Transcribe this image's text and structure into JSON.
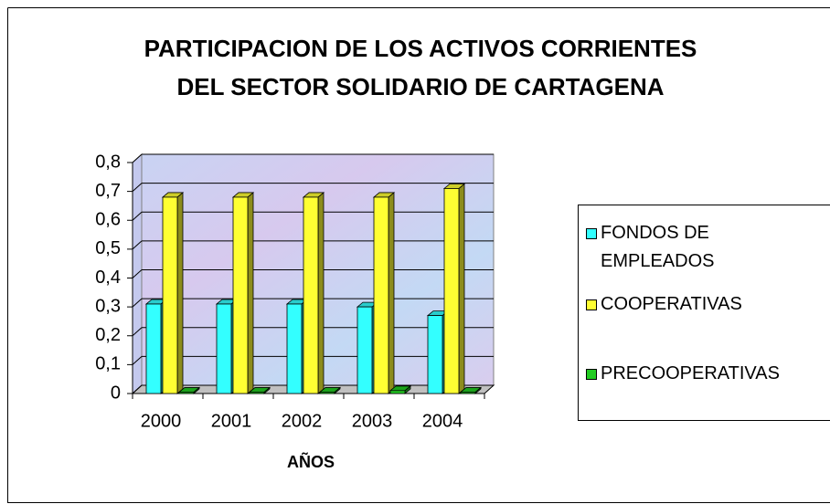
{
  "chart_data": {
    "type": "bar3d",
    "title": [
      "PARTICIPACION DE LOS ACTIVOS CORRIENTES",
      "DEL SECTOR SOLIDARIO DE CARTAGENA"
    ],
    "x_label": "AÑOS",
    "categories": [
      "2000",
      "2001",
      "2002",
      "2003",
      "2004"
    ],
    "series": [
      {
        "name": "FONDOS DE EMPLEADOS",
        "color": "#33ffff",
        "values": [
          0.31,
          0.31,
          0.31,
          0.3,
          0.27
        ]
      },
      {
        "name": "COOPERATIVAS",
        "color": "#ffff33",
        "values": [
          0.68,
          0.68,
          0.68,
          0.68,
          0.71
        ]
      },
      {
        "name": "PRECOOPERATIVAS",
        "color": "#22cc22",
        "values": [
          0.005,
          0.005,
          0.005,
          0.01,
          0.005
        ]
      }
    ],
    "ylim": [
      0,
      0.8
    ],
    "yticks": [
      0,
      {
        "value": 0.1,
        "label": "0,1"
      },
      {
        "value": 0.2,
        "label": "0,2"
      },
      {
        "value": 0.3,
        "label": "0,3"
      },
      {
        "value": 0.4,
        "label": "0,4"
      },
      {
        "value": 0.5,
        "label": "0,5"
      },
      {
        "value": 0.6,
        "label": "0,6"
      },
      {
        "value": 0.7,
        "label": "0,7"
      },
      {
        "value": 0.8,
        "label": "0,8"
      }
    ],
    "grid": true
  }
}
